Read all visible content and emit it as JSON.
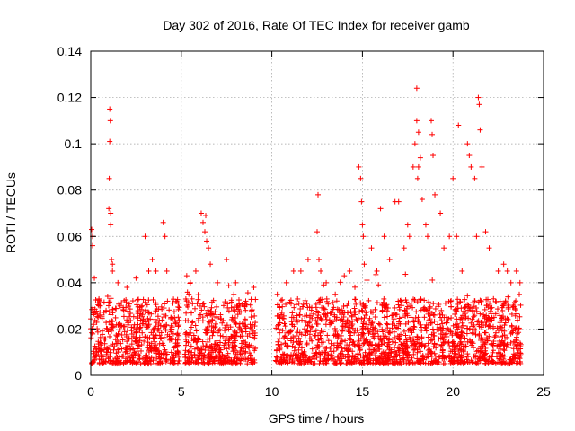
{
  "chart_data": {
    "type": "scatter",
    "title": "Day 302 of 2016, Rate Of TEC Index for receiver gamb",
    "xlabel": "GPS time / hours",
    "ylabel": "ROTI / TECUs",
    "xlim": [
      0,
      25
    ],
    "ylim": [
      0,
      0.14
    ],
    "xticks": [
      0,
      5,
      10,
      15,
      20,
      25
    ],
    "xtick_labels": [
      "0",
      "5",
      "10",
      "15",
      "20",
      "25"
    ],
    "yticks": [
      0,
      0.02,
      0.04,
      0.06,
      0.08,
      0.1,
      0.12,
      0.14
    ],
    "ytick_labels": [
      "0",
      "0.02",
      "0.04",
      "0.06",
      "0.08",
      "0.1",
      "0.12",
      "0.14"
    ],
    "grid": true,
    "marker": "plus",
    "color": "#ff0000",
    "data_gaps_hours": [
      [
        4.9,
        5.2
      ],
      [
        9.1,
        10.2
      ]
    ],
    "data_end_hour": 23.75,
    "series": [
      {
        "name": "ROTI",
        "x": [
          0.05,
          0.1,
          0.1,
          0.2,
          1.0,
          1.02,
          1.05,
          1.05,
          1.08,
          1.1,
          1.1,
          1.15,
          1.2,
          1.2,
          1.5,
          2.0,
          2.5,
          3.0,
          3.2,
          3.4,
          3.6,
          4.0,
          4.1,
          4.2,
          5.3,
          5.5,
          5.8,
          6.1,
          6.2,
          6.3,
          6.35,
          6.4,
          6.5,
          6.6,
          7.0,
          7.5,
          7.9,
          8.0,
          8.5,
          9.0,
          10.3,
          10.8,
          11.2,
          11.6,
          12.0,
          12.5,
          12.55,
          12.6,
          12.7,
          13.0,
          13.5,
          14.0,
          14.3,
          14.8,
          14.9,
          14.95,
          15.0,
          15.05,
          15.1,
          15.5,
          15.8,
          16.0,
          16.2,
          16.5,
          16.8,
          17.0,
          17.3,
          17.5,
          17.6,
          17.8,
          17.9,
          18.0,
          18.0,
          18.05,
          18.1,
          18.1,
          18.2,
          18.3,
          18.5,
          18.6,
          18.8,
          18.85,
          18.9,
          19.0,
          19.3,
          19.5,
          19.8,
          20.0,
          20.2,
          20.3,
          20.5,
          20.8,
          20.9,
          21.0,
          21.2,
          21.3,
          21.4,
          21.45,
          21.5,
          21.6,
          21.8,
          22.0,
          22.5,
          22.8,
          23.0,
          23.2,
          23.5,
          23.7
        ],
        "y": [
          0.063,
          0.06,
          0.056,
          0.042,
          0.072,
          0.085,
          0.101,
          0.115,
          0.11,
          0.065,
          0.07,
          0.05,
          0.045,
          0.048,
          0.04,
          0.038,
          0.042,
          0.06,
          0.045,
          0.05,
          0.045,
          0.066,
          0.06,
          0.045,
          0.043,
          0.04,
          0.045,
          0.07,
          0.066,
          0.062,
          0.069,
          0.058,
          0.055,
          0.048,
          0.04,
          0.05,
          0.035,
          0.04,
          0.03,
          0.038,
          0.035,
          0.04,
          0.045,
          0.045,
          0.05,
          0.062,
          0.078,
          0.05,
          0.045,
          0.04,
          0.035,
          0.043,
          0.045,
          0.09,
          0.085,
          0.075,
          0.065,
          0.06,
          0.048,
          0.055,
          0.045,
          0.072,
          0.06,
          0.05,
          0.075,
          0.075,
          0.055,
          0.065,
          0.06,
          0.09,
          0.1,
          0.124,
          0.11,
          0.085,
          0.105,
          0.09,
          0.094,
          0.076,
          0.065,
          0.06,
          0.11,
          0.104,
          0.095,
          0.078,
          0.07,
          0.055,
          0.06,
          0.085,
          0.06,
          0.108,
          0.045,
          0.1,
          0.095,
          0.09,
          0.085,
          0.06,
          0.12,
          0.117,
          0.106,
          0.09,
          0.062,
          0.055,
          0.045,
          0.048,
          0.045,
          0.04,
          0.045,
          0.04
        ]
      }
    ]
  }
}
